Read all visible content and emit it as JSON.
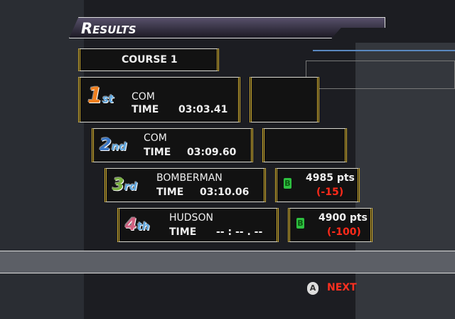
{
  "header": {
    "title": "Results"
  },
  "course": {
    "label": "COURSE 1"
  },
  "results": [
    {
      "place": "1",
      "suffix": "st",
      "name": "COM",
      "time_label": "TIME",
      "time": "03:03.41",
      "color": "#f08020"
    },
    {
      "place": "2",
      "suffix": "nd",
      "name": "COM",
      "time_label": "TIME",
      "time": "03:09.60",
      "color": "#3a78c8"
    },
    {
      "place": "3",
      "suffix": "rd",
      "name": "BOMBERMAN",
      "time_label": "TIME",
      "time": "03:10.06",
      "color": "#7ab040",
      "badge": "B",
      "points": "4985 pts",
      "delta": "(-15)"
    },
    {
      "place": "4",
      "suffix": "th",
      "name": "HUDSON",
      "time_label": "TIME",
      "time": "-- : -- . --",
      "color": "#d06080",
      "badge": "B",
      "points": "4900 pts",
      "delta": "(-100)"
    }
  ],
  "footer": {
    "button_icon": "A",
    "next_label": "NEXT"
  },
  "colors": {
    "accent_gold": "#d4b030",
    "next_red": "#ff3020",
    "badge_green": "#2ec040"
  }
}
